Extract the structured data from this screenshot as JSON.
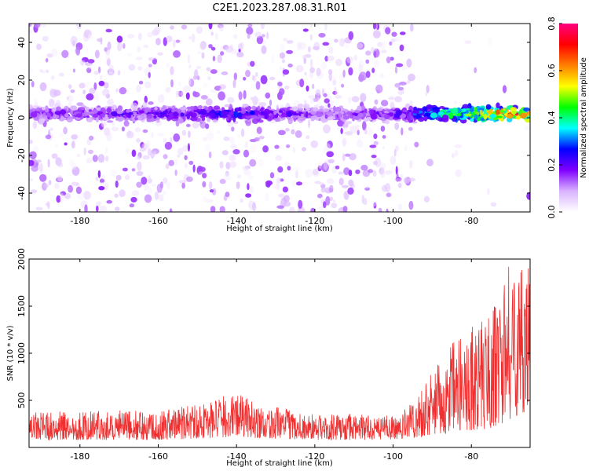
{
  "title": "C2E1.2023.287.08.31.R01",
  "chart_data": [
    {
      "type": "heatmap",
      "xlabel": "Height of straight line (km)",
      "ylabel": "Frequency (Hz)",
      "xlim": [
        -193,
        -65
      ],
      "ylim": [
        -50,
        50
      ],
      "x_ticks": [
        -180,
        -160,
        -140,
        -120,
        -100,
        -80
      ],
      "y_ticks": [
        -40,
        -20,
        0,
        20,
        40
      ],
      "colorbar": {
        "label": "Normalized spectral amplitude",
        "range": [
          0.0,
          0.8
        ],
        "ticks": [
          "0.0",
          "0.2",
          "0.4",
          "0.6",
          "0.8"
        ],
        "colors": [
          "#ffffff",
          "#d9b3ff",
          "#8000ff",
          "#0000ff",
          "#00ffff",
          "#00ff00",
          "#ffff00",
          "#ff8000",
          "#ff0000",
          "#ff0080"
        ]
      },
      "signal_band": {
        "center_hz": 2,
        "halfwidth_hz": 5,
        "amplitude_profile": [
          {
            "x": -193,
            "amp": 0.18
          },
          {
            "x": -150,
            "amp": 0.22
          },
          {
            "x": -140,
            "amp": 0.28
          },
          {
            "x": -120,
            "amp": 0.16
          },
          {
            "x": -100,
            "amp": 0.2
          },
          {
            "x": -90,
            "amp": 0.38
          },
          {
            "x": -80,
            "amp": 0.55
          },
          {
            "x": -70,
            "amp": 0.7
          },
          {
            "x": -65,
            "amp": 0.75
          }
        ]
      },
      "background_noise_cutoff_x": -95
    },
    {
      "type": "line",
      "xlabel": "Height of straight line (km)",
      "ylabel": "SNR (10 * v/v)",
      "xlim": [
        -193,
        -65
      ],
      "ylim": [
        0,
        2000
      ],
      "x_ticks": [
        -180,
        -160,
        -140,
        -120,
        -100,
        -80
      ],
      "y_ticks": [
        500,
        1000,
        1500,
        2000
      ],
      "color": "#f03030",
      "envelope": [
        {
          "x": -193,
          "low": 80,
          "high": 380
        },
        {
          "x": -160,
          "low": 80,
          "high": 400
        },
        {
          "x": -145,
          "low": 100,
          "high": 520
        },
        {
          "x": -140,
          "low": 120,
          "high": 590
        },
        {
          "x": -135,
          "low": 100,
          "high": 470
        },
        {
          "x": -120,
          "low": 80,
          "high": 350
        },
        {
          "x": -100,
          "low": 80,
          "high": 360
        },
        {
          "x": -95,
          "low": 100,
          "high": 500
        },
        {
          "x": -90,
          "low": 120,
          "high": 800
        },
        {
          "x": -85,
          "low": 150,
          "high": 1100
        },
        {
          "x": -80,
          "low": 180,
          "high": 1300
        },
        {
          "x": -75,
          "low": 200,
          "high": 1450
        },
        {
          "x": -70,
          "low": 300,
          "high": 2000
        },
        {
          "x": -65,
          "low": 400,
          "high": 1900
        }
      ]
    }
  ]
}
